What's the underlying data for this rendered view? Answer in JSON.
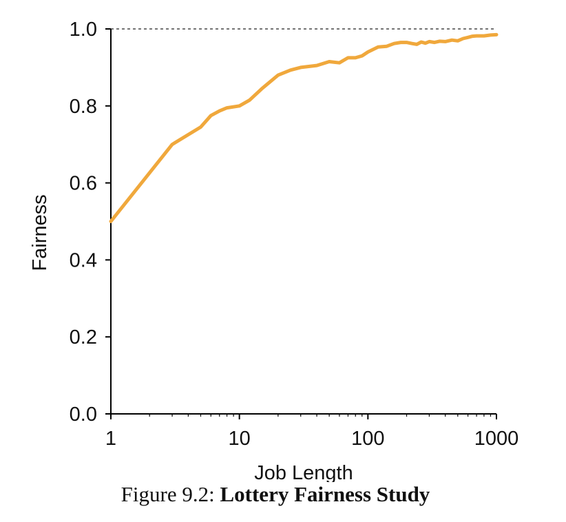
{
  "chart_data": {
    "type": "line",
    "xlabel": "Job Length",
    "ylabel": "Fairness",
    "xscale": "log",
    "xlim": [
      1,
      1000
    ],
    "ylim": [
      0,
      1.0
    ],
    "x_ticks": [
      1,
      10,
      100,
      1000
    ],
    "x_tick_labels": [
      "1",
      "10",
      "100",
      "1000"
    ],
    "y_ticks": [
      0,
      0.2,
      0.4,
      0.6,
      0.8,
      1.0
    ],
    "y_tick_labels": [
      "0.0",
      "0.2",
      "0.4",
      "0.6",
      "0.8",
      "1.0"
    ],
    "reference_line": {
      "y": 1.0,
      "style": "dashed"
    },
    "grid": false,
    "series": [
      {
        "color": "#f0a83c",
        "points": [
          [
            1,
            0.5
          ],
          [
            3,
            0.7
          ],
          [
            5,
            0.745
          ],
          [
            6,
            0.775
          ],
          [
            7,
            0.787
          ],
          [
            8,
            0.795
          ],
          [
            10,
            0.8
          ],
          [
            12,
            0.815
          ],
          [
            15,
            0.845
          ],
          [
            20,
            0.88
          ],
          [
            25,
            0.893
          ],
          [
            30,
            0.9
          ],
          [
            40,
            0.905
          ],
          [
            50,
            0.915
          ],
          [
            60,
            0.912
          ],
          [
            70,
            0.925
          ],
          [
            80,
            0.925
          ],
          [
            90,
            0.93
          ],
          [
            100,
            0.94
          ],
          [
            120,
            0.953
          ],
          [
            140,
            0.955
          ],
          [
            160,
            0.962
          ],
          [
            180,
            0.965
          ],
          [
            200,
            0.965
          ],
          [
            220,
            0.962
          ],
          [
            240,
            0.96
          ],
          [
            260,
            0.966
          ],
          [
            280,
            0.963
          ],
          [
            300,
            0.967
          ],
          [
            330,
            0.965
          ],
          [
            360,
            0.968
          ],
          [
            400,
            0.967
          ],
          [
            450,
            0.971
          ],
          [
            500,
            0.969
          ],
          [
            550,
            0.975
          ],
          [
            600,
            0.978
          ],
          [
            650,
            0.981
          ],
          [
            700,
            0.982
          ],
          [
            800,
            0.982
          ],
          [
            900,
            0.984
          ],
          [
            1000,
            0.985
          ]
        ]
      }
    ]
  },
  "caption": {
    "prefix": "Figure 9.2:",
    "title": "Lottery Fairness Study"
  }
}
